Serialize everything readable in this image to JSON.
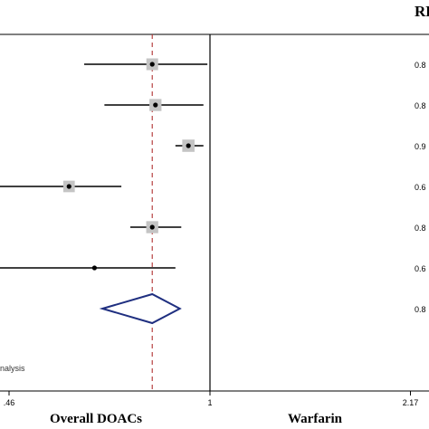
{
  "chart_data": {
    "type": "forest",
    "column_header": "RR",
    "xaxis": {
      "scale": "log",
      "ticks": [
        {
          "value": 0.46,
          "label": ".46"
        },
        {
          "value": 1,
          "label": "1"
        },
        {
          "value": 2.17,
          "label": "2.17"
        }
      ]
    },
    "favours_left": "Overall DOACs",
    "favours_right": "Warfarin",
    "overall_reference": 0.8,
    "rows": [
      {
        "label": "0.8",
        "est": 0.8,
        "lo": 0.615,
        "hi": 0.99,
        "weight": 1.0,
        "arrow_left": false
      },
      {
        "label": "0.8",
        "est": 0.81,
        "lo": 0.665,
        "hi": 0.975,
        "weight": 1.1,
        "arrow_left": false
      },
      {
        "label": "0.9",
        "est": 0.92,
        "lo": 0.875,
        "hi": 0.975,
        "weight": 1.2,
        "arrow_left": false
      },
      {
        "label": "0.6",
        "est": 0.58,
        "lo": 0.425,
        "hi": 0.71,
        "weight": 0.9,
        "arrow_left": false
      },
      {
        "label": "0.8",
        "est": 0.8,
        "lo": 0.735,
        "hi": 0.895,
        "weight": 1.1,
        "arrow_left": false
      },
      {
        "label": "0.6",
        "est": 0.64,
        "lo": 0.4,
        "hi": 0.875,
        "weight": 0.0,
        "arrow_left": true
      }
    ],
    "overall": {
      "label": "0.8",
      "est": 0.8,
      "lo": 0.66,
      "hi": 0.89
    },
    "footnote": "nalysis"
  }
}
